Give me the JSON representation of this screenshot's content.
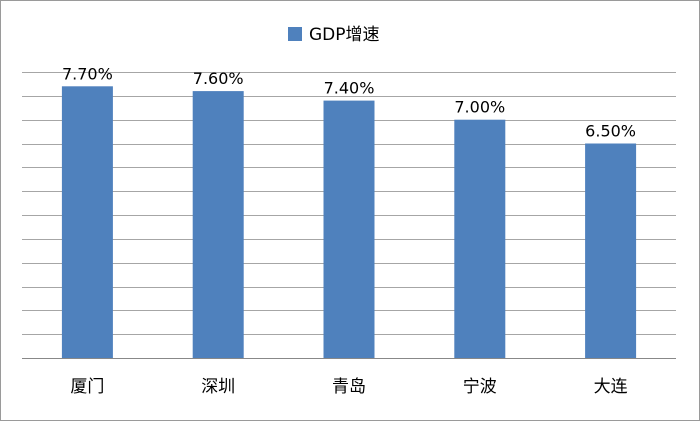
{
  "chart_data": {
    "type": "bar",
    "categories": [
      "厦门",
      "深圳",
      "青岛",
      "宁波",
      "大连"
    ],
    "series": [
      {
        "name": "GDP增速",
        "values": [
          7.7,
          7.6,
          7.4,
          7.0,
          6.5
        ],
        "color": "#4f81bd"
      }
    ],
    "data_labels": [
      "7.70%",
      "7.60%",
      "7.40%",
      "7.00%",
      "6.50%"
    ],
    "ylim": [
      2.0,
      8.0
    ],
    "grid": true,
    "legend": "top",
    "axis_color": "#888888",
    "grid_color": "#a6a6a6"
  }
}
